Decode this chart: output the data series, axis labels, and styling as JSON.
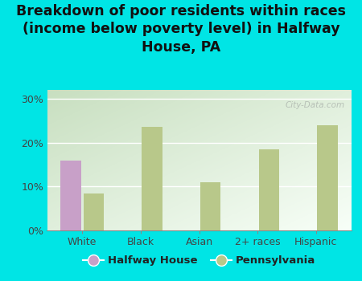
{
  "title": "Breakdown of poor residents within races\n(income below poverty level) in Halfway\nHouse, PA",
  "categories": [
    "White",
    "Black",
    "Asian",
    "2+ races",
    "Hispanic"
  ],
  "halfway_house": [
    16.0,
    0,
    0,
    0,
    0
  ],
  "pennsylvania": [
    8.5,
    23.5,
    11.0,
    18.5,
    24.0
  ],
  "halfway_color": "#c8a0c8",
  "pennsylvania_color": "#b8c88a",
  "background_color": "#00e5e5",
  "yticks": [
    0,
    10,
    20,
    30
  ],
  "ylim": [
    0,
    32
  ],
  "bar_width": 0.35,
  "title_fontsize": 12.5,
  "legend_labels": [
    "Halfway House",
    "Pennsylvania"
  ],
  "watermark": "City-Data.com",
  "plot_gradient_topleft": "#c8dfc0",
  "plot_gradient_bottomright": "#f5fff5"
}
